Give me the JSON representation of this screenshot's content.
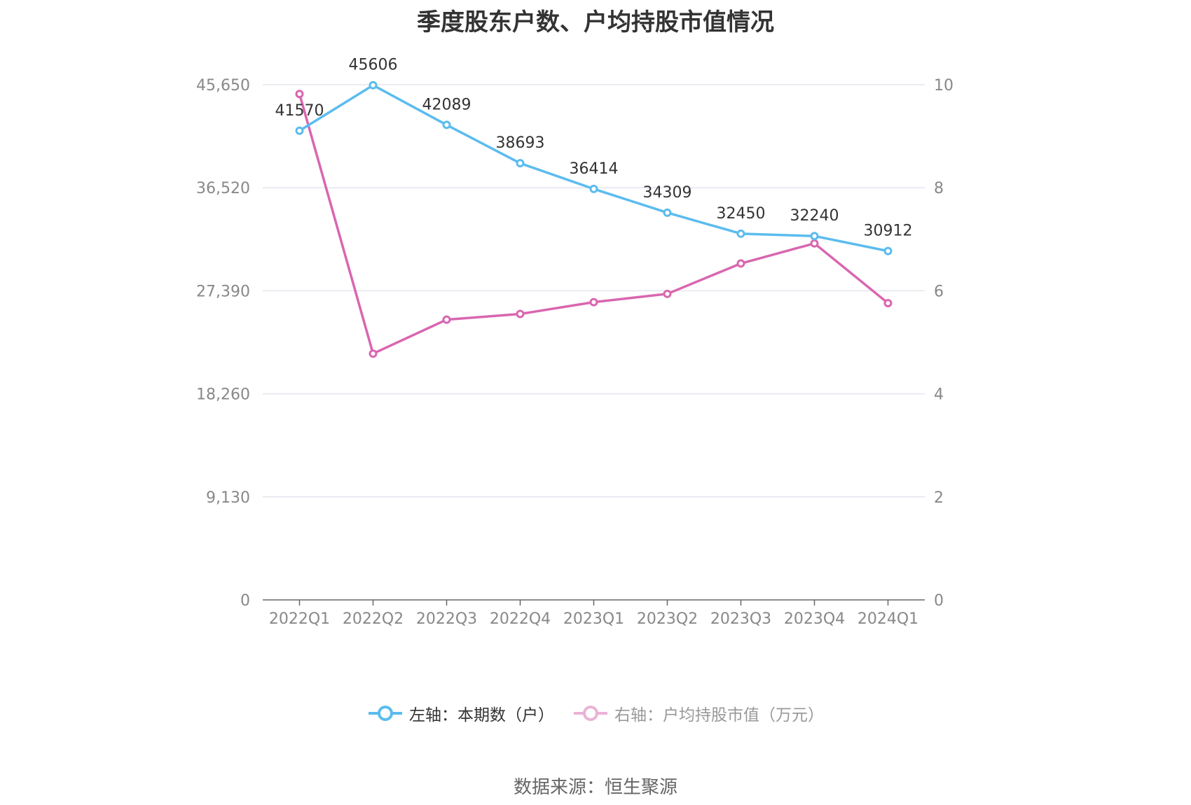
{
  "title": "季度股东户数、户均持股市值情况",
  "source": "数据来源：恒生聚源",
  "legend": {
    "left_label": "左轴：本期数（户）",
    "right_label": "右轴：户均持股市值（万元）"
  },
  "chart_data": {
    "type": "line",
    "categories": [
      "2022Q1",
      "2022Q2",
      "2022Q3",
      "2022Q4",
      "2023Q1",
      "2023Q2",
      "2023Q3",
      "2023Q4",
      "2024Q1"
    ],
    "left_axis": {
      "ticks": [
        "0",
        "9,130",
        "18,260",
        "27,390",
        "36,520",
        "45,650"
      ],
      "range": [
        0,
        45650
      ]
    },
    "right_axis": {
      "ticks": [
        "0",
        "2",
        "4",
        "6",
        "8",
        "10"
      ],
      "range": [
        0,
        10
      ]
    },
    "series": [
      {
        "name": "左轴：本期数（户）",
        "axis": "left",
        "color": "#5bbcef",
        "values": [
          41570,
          45606,
          42089,
          38693,
          36414,
          34309,
          32450,
          32240,
          30912
        ],
        "labels": [
          "41570",
          "45606",
          "42089",
          "38693",
          "36414",
          "34309",
          "32450",
          "32240",
          "30912"
        ]
      },
      {
        "name": "右轴：户均持股市值（万元）",
        "axis": "right",
        "color": "#d966b0",
        "values": [
          9.82,
          4.78,
          5.44,
          5.55,
          5.78,
          5.94,
          6.53,
          6.92,
          5.76
        ]
      }
    ],
    "grid": true,
    "legend_position": "bottom"
  }
}
